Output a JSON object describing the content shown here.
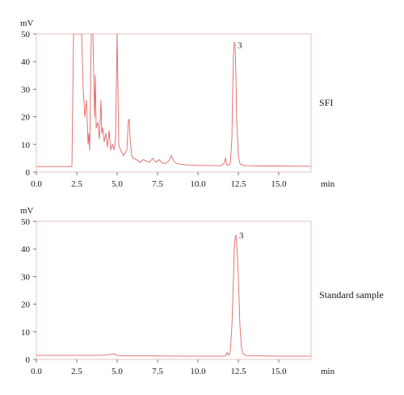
{
  "chart_data": [
    {
      "type": "line",
      "panel_label": "SFI",
      "ylabel": "mV",
      "xlabel": "min",
      "ylim": [
        0,
        50
      ],
      "xlim": [
        0,
        17
      ],
      "yticks": [
        0,
        10,
        20,
        30,
        40,
        50
      ],
      "xticks": [
        "0.0",
        "2.5",
        "5.0",
        "7.5",
        "10.0",
        "12.5",
        "15.0"
      ],
      "xtick_values": [
        0,
        2.5,
        5,
        7.5,
        10,
        12.5,
        15
      ],
      "grid": false,
      "color": "#e06666",
      "peak_label": "3",
      "peak_label_at": [
        12.3,
        46
      ],
      "series": [
        {
          "x": [
            0,
            2.2,
            2.3,
            2.45,
            2.55,
            2.7,
            2.8,
            2.9,
            3.0,
            3.1,
            3.2,
            3.25,
            3.3,
            3.4,
            3.5,
            3.6,
            3.65,
            3.7,
            3.8,
            3.9,
            4.0,
            4.05,
            4.1,
            4.2,
            4.3,
            4.4,
            4.5,
            4.6,
            4.7,
            4.8,
            4.9,
            5.0,
            5.05,
            5.1,
            5.2,
            5.3,
            5.4,
            5.5,
            5.6,
            5.7,
            5.75,
            5.8,
            5.9,
            6.0,
            6.2,
            6.4,
            6.6,
            6.8,
            7.0,
            7.2,
            7.4,
            7.6,
            7.8,
            8.0,
            8.2,
            8.35,
            8.5,
            8.7,
            9.0,
            9.5,
            10.0,
            10.5,
            11.0,
            11.4,
            11.6,
            11.7,
            11.8,
            11.9,
            12.0,
            12.1,
            12.15,
            12.2,
            12.25,
            12.3,
            12.35,
            12.4,
            12.5,
            12.6,
            12.8,
            13.0,
            14.0,
            15.0,
            16.0,
            17.0
          ],
          "values": [
            2,
            2,
            50,
            50,
            50,
            50,
            50,
            30,
            20,
            26,
            10,
            14,
            8,
            50,
            50,
            20,
            35,
            16,
            18,
            12,
            26,
            14,
            16,
            11,
            14,
            9,
            15,
            8,
            10,
            8,
            12,
            50,
            30,
            10,
            8,
            7,
            6,
            7,
            8,
            19,
            19,
            12,
            6,
            5,
            4.5,
            3.5,
            4.5,
            4,
            3.5,
            5,
            3.5,
            4.5,
            3.2,
            3.2,
            4,
            6,
            4,
            3,
            2.8,
            2.5,
            2.4,
            2.4,
            2.3,
            2.3,
            3,
            5,
            2.5,
            2.5,
            3,
            12,
            30,
            43,
            47,
            46,
            35,
            18,
            6,
            3,
            2.4,
            2.3,
            2.2,
            2.2,
            2.1,
            2.1
          ]
        }
      ]
    },
    {
      "type": "line",
      "panel_label": "Standard sample",
      "ylabel": "mV",
      "xlabel": "min",
      "ylim": [
        0,
        50
      ],
      "xlim": [
        0,
        17
      ],
      "yticks": [
        0,
        10,
        20,
        30,
        40,
        50
      ],
      "xticks": [
        "0.0",
        "2.5",
        "5.0",
        "7.5",
        "10.0",
        "12.5",
        "15.0"
      ],
      "xtick_values": [
        0,
        2.5,
        5,
        7.5,
        10,
        12.5,
        15
      ],
      "grid": false,
      "color": "#e06666",
      "peak_label": "3",
      "peak_label_at": [
        12.4,
        45
      ],
      "series": [
        {
          "x": [
            0,
            2.0,
            4.0,
            4.8,
            5.0,
            5.5,
            7.0,
            9.0,
            11.0,
            11.7,
            11.8,
            11.9,
            12.0,
            12.1,
            12.2,
            12.25,
            12.3,
            12.35,
            12.4,
            12.5,
            12.6,
            12.7,
            12.8,
            13.0,
            14.0,
            15.0,
            16.0,
            17.0
          ],
          "values": [
            1.5,
            1.5,
            1.5,
            2,
            1.5,
            1.3,
            1.3,
            1.2,
            1.2,
            1.2,
            2.5,
            1.5,
            3,
            12,
            30,
            40,
            44,
            45,
            42,
            30,
            12,
            4,
            2,
            1.4,
            1.3,
            1.2,
            1.2,
            1.2
          ]
        }
      ]
    }
  ]
}
